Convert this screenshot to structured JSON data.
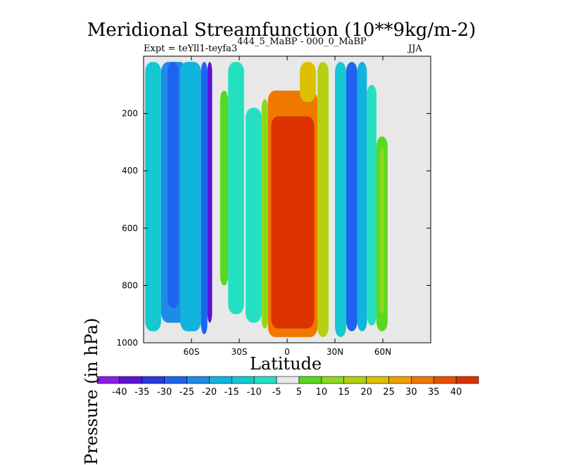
{
  "chart_data": {
    "type": "heatmap",
    "title": "Meridional Streamfunction (10**9kg/m-2)",
    "subtitle_main": "Expt = teYll1-teyfa3",
    "subtitle_sup": "444_5_MaBP - 000_0_MaBP",
    "season": "JJA",
    "xlabel": "Latitude",
    "ylabel": "Pressure (in hPa)",
    "xlim": [
      -90,
      90
    ],
    "ylim": [
      1000,
      0
    ],
    "x_ticks": [
      {
        "value": -60,
        "label": "60S"
      },
      {
        "value": -30,
        "label": "30S"
      },
      {
        "value": 0,
        "label": "0"
      },
      {
        "value": 30,
        "label": "30N"
      },
      {
        "value": 60,
        "label": "60N"
      }
    ],
    "y_ticks": [
      {
        "value": 200,
        "label": "200"
      },
      {
        "value": 400,
        "label": "400"
      },
      {
        "value": 600,
        "label": "600"
      },
      {
        "value": 800,
        "label": "800"
      },
      {
        "value": 1000,
        "label": "1000"
      }
    ],
    "colorbar": {
      "labels": [
        "-40",
        "-35",
        "-30",
        "-25",
        "-20",
        "-15",
        "-10",
        "-5",
        "5",
        "10",
        "15",
        "20",
        "25",
        "30",
        "35",
        "40"
      ],
      "colors": [
        "#8c1de6",
        "#5a14d6",
        "#2a3adc",
        "#1e64f0",
        "#1e8ce6",
        "#10b4dc",
        "#14c8d2",
        "#24e0c0",
        "#e8e8e8",
        "#58d820",
        "#8cd81e",
        "#b4d010",
        "#dcc000",
        "#f0a000",
        "#f07800",
        "#e85000",
        "#dc3200"
      ]
    },
    "background_color": "#e8e8e8",
    "contour_cells": [
      {
        "lat_range": [
          -89,
          -79
        ],
        "p_range": [
          20,
          960
        ],
        "value": -12
      },
      {
        "lat_range": [
          -79,
          -63
        ],
        "p_range": [
          20,
          930
        ],
        "value": -22
      },
      {
        "lat_range": [
          -75,
          -68
        ],
        "p_range": [
          20,
          880
        ],
        "value": -30
      },
      {
        "lat_range": [
          -67,
          -54
        ],
        "p_range": [
          20,
          960
        ],
        "value": -17
      },
      {
        "lat_range": [
          -54,
          -50
        ],
        "p_range": [
          20,
          970
        ],
        "value": -28
      },
      {
        "lat_range": [
          -50,
          -47
        ],
        "p_range": [
          20,
          930
        ],
        "value": -40
      },
      {
        "lat_range": [
          -42,
          -37
        ],
        "p_range": [
          120,
          800
        ],
        "value": 7
      },
      {
        "lat_range": [
          -37,
          -27
        ],
        "p_range": [
          20,
          900
        ],
        "value": -10
      },
      {
        "lat_range": [
          -26,
          -16
        ],
        "p_range": [
          180,
          930
        ],
        "value": -8
      },
      {
        "lat_range": [
          -16,
          -12
        ],
        "p_range": [
          150,
          950
        ],
        "value": 12
      },
      {
        "lat_range": [
          -12,
          19
        ],
        "p_range": [
          120,
          980
        ],
        "value": 30
      },
      {
        "lat_range": [
          -10,
          17
        ],
        "p_range": [
          210,
          950
        ],
        "value": 40
      },
      {
        "lat_range": [
          8,
          18
        ],
        "p_range": [
          20,
          160
        ],
        "value": 20
      },
      {
        "lat_range": [
          19,
          26
        ],
        "p_range": [
          20,
          980
        ],
        "value": 15
      },
      {
        "lat_range": [
          30,
          37
        ],
        "p_range": [
          20,
          980
        ],
        "value": -15
      },
      {
        "lat_range": [
          37,
          44
        ],
        "p_range": [
          20,
          960
        ],
        "value": -28
      },
      {
        "lat_range": [
          44,
          50
        ],
        "p_range": [
          20,
          960
        ],
        "value": -18
      },
      {
        "lat_range": [
          50,
          56
        ],
        "p_range": [
          100,
          940
        ],
        "value": -8
      },
      {
        "lat_range": [
          56,
          63
        ],
        "p_range": [
          280,
          960
        ],
        "value": 9
      },
      {
        "lat_range": [
          58,
          61
        ],
        "p_range": [
          320,
          900
        ],
        "value": 14
      }
    ]
  }
}
